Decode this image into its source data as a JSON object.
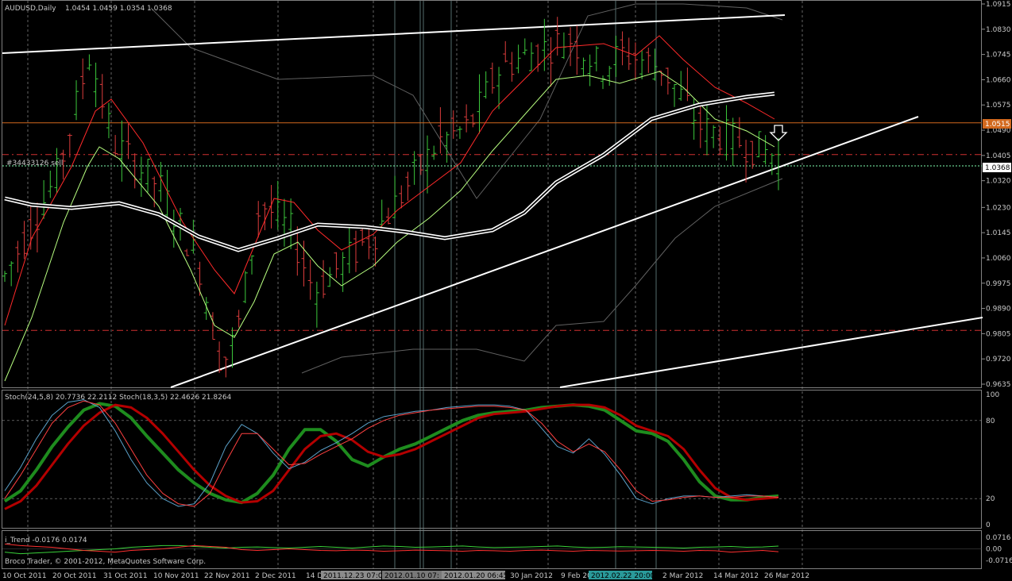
{
  "chart_data": [
    {
      "type": "candlestick",
      "symbol_label": "AUDUSD,Daily",
      "ohlc_label": "1.0454 1.0459 1.0354 1.0368",
      "ylim": [
        0.9635,
        1.0915
      ],
      "price_ticks": [
        "1.0915",
        "1.0830",
        "1.0745",
        "1.0660",
        "1.0575",
        "1.0490",
        "1.0405",
        "1.0320",
        "1.0230",
        "1.0145",
        "1.0060",
        "0.9975",
        "0.9890",
        "0.9805",
        "0.9720",
        "0.9635"
      ],
      "tick_values": [
        1.0915,
        1.083,
        1.0745,
        1.066,
        1.0575,
        1.049,
        1.0405,
        1.032,
        1.023,
        1.0145,
        1.006,
        0.9975,
        0.989,
        0.9805,
        0.972,
        0.9635
      ],
      "bid_line": {
        "label": "1.0515",
        "value": 1.0515,
        "color": "#d2691e"
      },
      "current_price": {
        "label": "1.0368",
        "value": 1.0368
      },
      "order_label": "#34433126 sell",
      "order_level": 1.037,
      "dash_levels": [
        1.0408,
        0.9816
      ],
      "colors": {
        "bull": "#3cc83c",
        "bear": "#dc3c3c",
        "ma_fast": "#ff2a2a",
        "ma_slow": "#b8ff80",
        "band": "#606060",
        "trend": "#ffffff"
      }
    },
    {
      "type": "line",
      "label": "Stoch(24,5,8) 20.7736 22.2112  Stoch(18,3,5) 22.4626 21.8264",
      "ylim": [
        0,
        100
      ],
      "levels": [
        "100",
        "80",
        "20",
        "0"
      ],
      "level_values": [
        100,
        80,
        20,
        0
      ],
      "series": [
        {
          "values": [
            18,
            26,
            42,
            60,
            75,
            88,
            93,
            91,
            82,
            68,
            55,
            42,
            32,
            24,
            19,
            17,
            24,
            38,
            58,
            73,
            73,
            64,
            50,
            45,
            52,
            58,
            62,
            68,
            74,
            80,
            84,
            86,
            87,
            88,
            90,
            91,
            92,
            91,
            88,
            80,
            72,
            70,
            64,
            50,
            33,
            22,
            19,
            19,
            21,
            22
          ],
          "color": "#1e8c1e",
          "width": 4
        },
        {
          "values": [
            12,
            18,
            30,
            46,
            62,
            76,
            86,
            92,
            90,
            82,
            70,
            56,
            42,
            30,
            22,
            17,
            18,
            26,
            42,
            58,
            68,
            70,
            65,
            56,
            52,
            54,
            58,
            64,
            70,
            76,
            82,
            85,
            86,
            87,
            89,
            91,
            92,
            92,
            90,
            84,
            76,
            72,
            68,
            58,
            42,
            28,
            21,
            19,
            20,
            21
          ],
          "color": "#b40000",
          "width": 3
        },
        {
          "values": [
            26,
            44,
            66,
            84,
            94,
            96,
            90,
            72,
            50,
            32,
            20,
            14,
            16,
            32,
            60,
            77,
            70,
            55,
            43,
            48,
            57,
            63,
            70,
            78,
            83,
            85,
            87,
            88,
            90,
            91,
            92,
            92,
            91,
            88,
            74,
            60,
            55,
            66,
            54,
            38,
            20,
            16,
            20,
            22,
            22,
            21,
            22,
            23,
            22,
            21
          ],
          "color": "#5aa0c8",
          "width": 1
        },
        {
          "values": [
            20,
            38,
            58,
            78,
            90,
            95,
            92,
            78,
            58,
            38,
            24,
            16,
            14,
            24,
            48,
            70,
            70,
            58,
            46,
            47,
            54,
            60,
            66,
            74,
            80,
            84,
            86,
            88,
            89,
            90,
            91,
            91,
            90,
            88,
            78,
            64,
            56,
            62,
            56,
            42,
            26,
            18,
            19,
            21,
            22,
            21,
            21,
            22,
            22,
            21
          ],
          "color": "#ff4040",
          "width": 1
        }
      ]
    },
    {
      "type": "line",
      "label": "i_Trend -0.0176 0.0174",
      "ylim": [
        -0.0716,
        0.0716
      ],
      "levels": [
        "0.0716",
        "0.00",
        "-0.0716"
      ],
      "level_values": [
        0.0716,
        0.0,
        -0.0716
      ],
      "series": [
        {
          "values": [
            -0.02,
            -0.03,
            -0.025,
            -0.02,
            -0.015,
            -0.01,
            -0.005,
            0.0,
            0.01,
            0.015,
            0.02,
            0.02,
            0.015,
            0.01,
            0.005,
            0.01,
            0.012,
            0.008,
            0.005,
            0.01,
            0.015,
            0.01,
            0.005,
            0.012,
            0.018,
            0.015,
            0.01,
            0.012,
            0.015,
            0.018,
            0.012,
            0.008,
            0.01,
            0.012,
            0.015,
            0.018,
            0.012,
            0.008,
            0.01,
            0.014,
            0.012,
            0.01,
            0.008,
            0.005,
            0.01,
            0.012,
            0.015,
            0.01,
            0.012,
            0.0174
          ],
          "color": "#3ad23a"
        },
        {
          "values": [
            0.03,
            0.02,
            0.015,
            0.01,
            0.0,
            -0.01,
            -0.015,
            -0.02,
            -0.01,
            -0.005,
            0.0,
            0.01,
            0.02,
            0.015,
            0.01,
            -0.005,
            -0.01,
            -0.005,
            0.0,
            -0.005,
            -0.01,
            -0.012,
            -0.008,
            -0.01,
            -0.015,
            -0.012,
            -0.008,
            -0.01,
            -0.012,
            -0.015,
            -0.01,
            -0.012,
            -0.015,
            -0.01,
            -0.008,
            -0.012,
            -0.015,
            -0.01,
            -0.012,
            -0.014,
            -0.012,
            -0.01,
            -0.012,
            -0.015,
            -0.01,
            -0.012,
            -0.02,
            -0.015,
            -0.01,
            -0.0176
          ],
          "color": "#ff3030"
        }
      ]
    }
  ],
  "time_axis": {
    "labels": [
      "10 Oct 2011",
      "20 Oct 2011",
      "31 Oct 2011",
      "10 Nov 2011",
      "22 Nov 2011",
      "2 Dec 2011",
      "14 D",
      "30 Jan 2012",
      "9 Feb 20",
      "2 Mar 2012",
      "14 Mar 2012",
      "26 Mar 2012"
    ],
    "markers": [
      {
        "label": "2011.12.23 07:00",
        "color": "#8c8c8c"
      },
      {
        "label": "2012.01.10 07:",
        "color": "#787878"
      },
      {
        "label": "2012.01.20 06:45",
        "color": "#8c8c8c"
      },
      {
        "label": "2012.02.22 20:00",
        "color": "#2a9a9a"
      }
    ]
  },
  "copyright": "Broco Trader, © 2001-2012, MetaQuotes Software Corp."
}
